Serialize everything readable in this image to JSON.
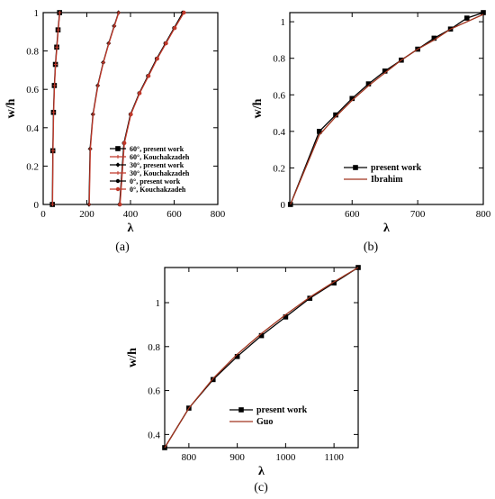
{
  "chart_data": [
    {
      "type": "line",
      "panel_label": "(a)",
      "xlabel": "λ",
      "ylabel": "w/h",
      "xlim": [
        0,
        800
      ],
      "ylim": [
        0,
        1
      ],
      "xticks": [
        0,
        200,
        400,
        600,
        800
      ],
      "yticks": [
        0,
        0.2,
        0.4,
        0.6,
        0.8,
        1
      ],
      "legend": "bottom-right",
      "series": [
        {
          "name": "60°, present work",
          "color": "#000000",
          "marker": "square",
          "x": [
            42,
            44,
            47,
            51,
            56,
            62,
            68,
            75
          ],
          "y": [
            0.0,
            0.28,
            0.48,
            0.62,
            0.73,
            0.82,
            0.91,
            1.0
          ]
        },
        {
          "name": "60°, Kouchakzadeh",
          "color": "#c0392b",
          "marker": "cross",
          "x": [
            43,
            45,
            48,
            52,
            57,
            63,
            69,
            76
          ],
          "y": [
            0.0,
            0.28,
            0.48,
            0.62,
            0.73,
            0.82,
            0.91,
            1.0
          ]
        },
        {
          "name": "30°, present work",
          "color": "#000000",
          "marker": "diamond",
          "x": [
            210,
            215,
            228,
            250,
            275,
            300,
            325,
            345
          ],
          "y": [
            0.0,
            0.29,
            0.47,
            0.62,
            0.74,
            0.84,
            0.93,
            1.0
          ]
        },
        {
          "name": "30°, Kouchakzadeh",
          "color": "#c0392b",
          "marker": "cross",
          "x": [
            211,
            216,
            229,
            251,
            276,
            301,
            326,
            346
          ],
          "y": [
            0.0,
            0.29,
            0.47,
            0.62,
            0.74,
            0.84,
            0.93,
            1.0
          ]
        },
        {
          "name": "0°, present work",
          "color": "#000000",
          "marker": "circle",
          "x": [
            350,
            370,
            400,
            440,
            480,
            520,
            560,
            600,
            640
          ],
          "y": [
            0.0,
            0.32,
            0.47,
            0.58,
            0.67,
            0.76,
            0.84,
            0.92,
            1.0
          ]
        },
        {
          "name": "0°, Kouchakzadeh",
          "color": "#c0392b",
          "marker": "circle",
          "x": [
            352,
            372,
            402,
            442,
            483,
            523,
            563,
            603,
            645
          ],
          "y": [
            0.0,
            0.32,
            0.47,
            0.58,
            0.67,
            0.76,
            0.84,
            0.92,
            1.0
          ]
        }
      ]
    },
    {
      "type": "line",
      "panel_label": "(b)",
      "xlabel": "λ",
      "ylabel": "w/h",
      "xlim": [
        505,
        800
      ],
      "ylim": [
        0,
        1.05
      ],
      "xticks": [
        600,
        700,
        800
      ],
      "yticks": [
        0,
        0.2,
        0.4,
        0.6,
        0.8,
        1
      ],
      "legend": "bottom-right",
      "series": [
        {
          "name": "present work",
          "color": "#000000",
          "marker": "square",
          "x": [
            506,
            550,
            575,
            600,
            625,
            650,
            675,
            700,
            725,
            750,
            775,
            800
          ],
          "y": [
            0.0,
            0.4,
            0.49,
            0.58,
            0.66,
            0.73,
            0.79,
            0.85,
            0.91,
            0.96,
            1.02,
            1.05
          ]
        },
        {
          "name": "Ibrahim",
          "color": "#a0341e",
          "marker": "none",
          "x": [
            506,
            550,
            575,
            600,
            625,
            650,
            675,
            700,
            725,
            750,
            775,
            800
          ],
          "y": [
            0.0,
            0.38,
            0.48,
            0.57,
            0.65,
            0.72,
            0.79,
            0.85,
            0.9,
            0.96,
            1.0,
            1.04
          ]
        }
      ]
    },
    {
      "type": "line",
      "panel_label": "(c)",
      "xlabel": "λ",
      "ylabel": "w/h",
      "xlim": [
        750,
        1150
      ],
      "ylim": [
        0.34,
        1.16
      ],
      "xticks": [
        800,
        900,
        1000,
        1100
      ],
      "yticks": [
        0.4,
        0.6,
        0.8,
        1
      ],
      "legend": "bottom-right",
      "series": [
        {
          "name": "present work",
          "color": "#000000",
          "marker": "square",
          "x": [
            750,
            800,
            850,
            900,
            950,
            1000,
            1050,
            1100,
            1150
          ],
          "y": [
            0.34,
            0.52,
            0.65,
            0.755,
            0.85,
            0.935,
            1.02,
            1.09,
            1.16
          ]
        },
        {
          "name": "Guo",
          "color": "#a0341e",
          "marker": "none",
          "x": [
            750,
            800,
            850,
            900,
            950,
            1000,
            1050,
            1100,
            1150
          ],
          "y": [
            0.34,
            0.52,
            0.655,
            0.765,
            0.86,
            0.945,
            1.025,
            1.095,
            1.16
          ]
        }
      ]
    }
  ]
}
